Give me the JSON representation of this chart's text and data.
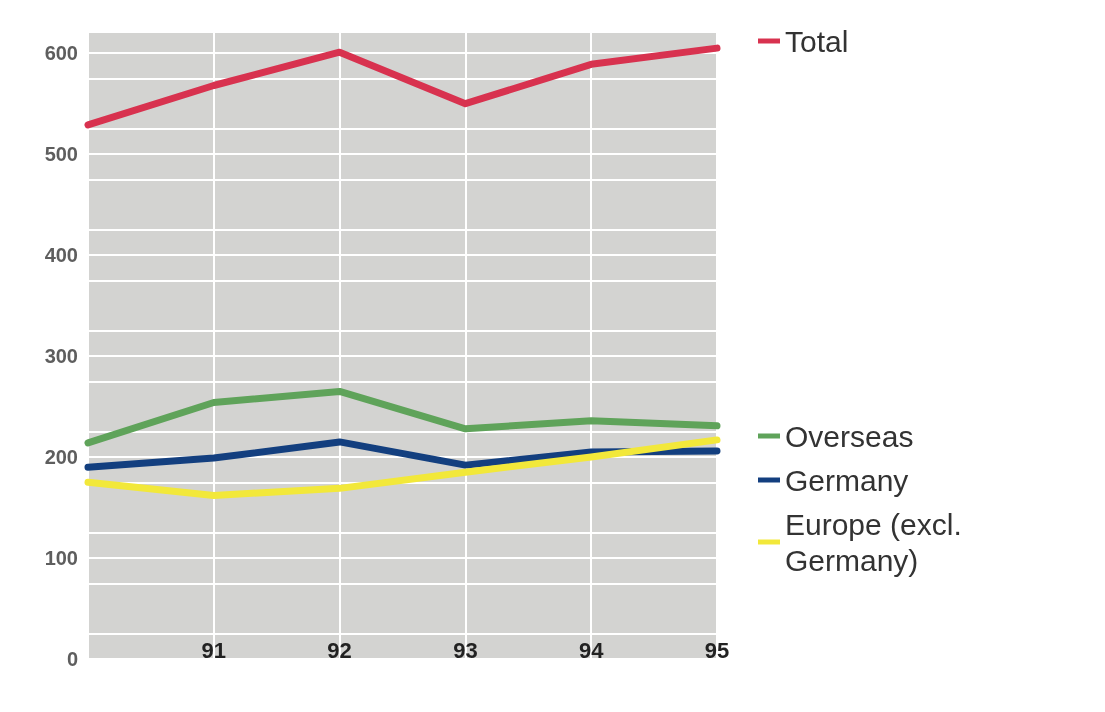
{
  "chart_data": {
    "type": "line",
    "categories": [
      null,
      "91",
      "92",
      "93",
      "94",
      "95"
    ],
    "series": [
      {
        "name": "Total",
        "color": "#d8324f",
        "values": [
          529,
          568,
          601,
          550,
          589,
          605
        ]
      },
      {
        "name": "Overseas",
        "color": "#5fa35a",
        "values": [
          214,
          254,
          265,
          228,
          236,
          231
        ]
      },
      {
        "name": "Germany",
        "color": "#133f7f",
        "values": [
          190,
          199,
          215,
          192,
          205,
          206
        ]
      },
      {
        "name": "Europe (excl. Germany)",
        "color": "#f2e83a",
        "values": [
          175,
          162,
          169,
          185,
          200,
          217
        ]
      }
    ],
    "ylim": [
      0,
      620
    ],
    "yticks": [
      0,
      100,
      200,
      300,
      400,
      500,
      600
    ],
    "grid": true,
    "legend": "right",
    "marker": "none",
    "line_style": "solid"
  }
}
